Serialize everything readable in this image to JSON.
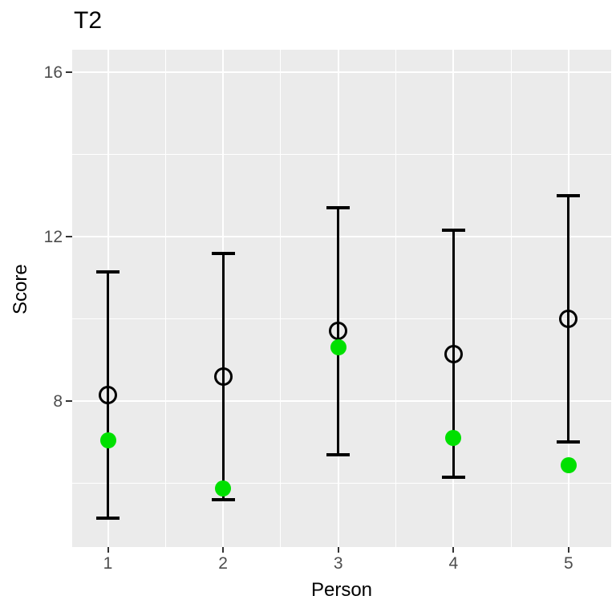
{
  "chart_data": {
    "type": "scatter",
    "title": "T2",
    "xlabel": "Person",
    "ylabel": "Score",
    "x": [
      1,
      2,
      3,
      4,
      5
    ],
    "x_tick_labels": [
      "1",
      "2",
      "3",
      "4",
      "5"
    ],
    "y_ticks": [
      16,
      12,
      8
    ],
    "y_tick_labels": [
      "16",
      "12",
      "8"
    ],
    "x_range": [
      0.69,
      5.37
    ],
    "y_range": [
      4.45,
      16.55
    ],
    "grid": {
      "major_y": [
        8,
        12,
        16
      ],
      "minor_y": [
        6,
        10,
        14
      ],
      "major_x": [
        1,
        2,
        3,
        4,
        5
      ],
      "minor_x": [
        1.5,
        2.5,
        3.5,
        4.5
      ]
    },
    "series": [
      {
        "name": "open-circle-estimate",
        "marker": "open-circle",
        "color": "#000000",
        "values": [
          8.15,
          8.6,
          9.7,
          9.15,
          10.0
        ]
      },
      {
        "name": "green-dot-estimate",
        "marker": "filled-circle",
        "color": "#00E000",
        "values": [
          7.05,
          5.88,
          9.3,
          7.1,
          6.45
        ]
      }
    ],
    "error_bars": {
      "attached_to": "open-circle-estimate",
      "low": [
        5.15,
        5.6,
        6.7,
        6.15,
        7.0
      ],
      "high": [
        11.15,
        11.6,
        12.7,
        12.15,
        13.0
      ],
      "color": "#000000"
    },
    "style": {
      "panel_bg": "#EBEBEB",
      "grid_color": "#FFFFFF",
      "tick_label_color": "#4D4D4D",
      "tick_mark_color": "#333333",
      "legend": "none"
    }
  }
}
